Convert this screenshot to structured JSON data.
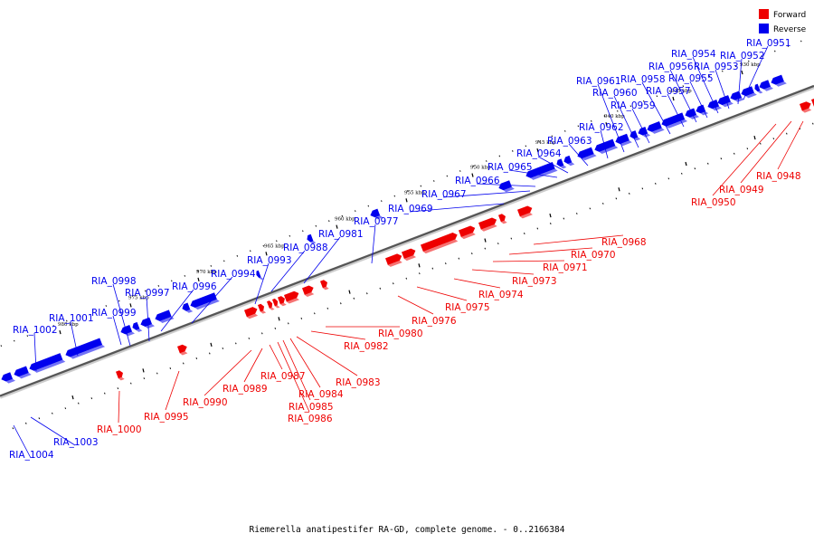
{
  "colors": {
    "forward": "#ee0000",
    "reverse": "#0000ee",
    "axis": "#777777",
    "tick": "#000000"
  },
  "legend": [
    {
      "label": "Forward",
      "strand": "forward"
    },
    {
      "label": "Reverse",
      "strand": "reverse"
    }
  ],
  "caption": "Riemerella anatipestifer RA-GD, complete genome. - 0..2166384",
  "axis_ticks": [
    "930 kbp",
    "935 kbp",
    "940 kbp",
    "945 kbp",
    "950 kbp",
    "955 kbp",
    "960 kbp",
    "965 kbp",
    "970 kbp",
    "975 kbp",
    "980 kbp"
  ],
  "genes": [
    {
      "id": "RIA_0948",
      "strand": "forward"
    },
    {
      "id": "RIA_0949",
      "strand": "forward"
    },
    {
      "id": "RIA_0950",
      "strand": "forward"
    },
    {
      "id": "RIA_0951",
      "strand": "reverse"
    },
    {
      "id": "RIA_0952",
      "strand": "reverse"
    },
    {
      "id": "RIA_0953",
      "strand": "reverse"
    },
    {
      "id": "RIA_0954",
      "strand": "reverse"
    },
    {
      "id": "RIA_0955",
      "strand": "reverse"
    },
    {
      "id": "RIA_0956",
      "strand": "reverse"
    },
    {
      "id": "RIA_0957",
      "strand": "reverse"
    },
    {
      "id": "RIA_0958",
      "strand": "reverse"
    },
    {
      "id": "RIA_0959",
      "strand": "reverse"
    },
    {
      "id": "RIA_0960",
      "strand": "reverse"
    },
    {
      "id": "RIA_0961",
      "strand": "reverse"
    },
    {
      "id": "RIA_0962",
      "strand": "reverse"
    },
    {
      "id": "RIA_0963",
      "strand": "reverse"
    },
    {
      "id": "RIA_0964",
      "strand": "reverse"
    },
    {
      "id": "RIA_0965",
      "strand": "reverse"
    },
    {
      "id": "RIA_0966",
      "strand": "reverse"
    },
    {
      "id": "RIA_0967",
      "strand": "reverse"
    },
    {
      "id": "RIA_0968",
      "strand": "forward"
    },
    {
      "id": "RIA_0969",
      "strand": "reverse"
    },
    {
      "id": "RIA_0970",
      "strand": "forward"
    },
    {
      "id": "RIA_0971",
      "strand": "forward"
    },
    {
      "id": "RIA_0973",
      "strand": "forward"
    },
    {
      "id": "RIA_0974",
      "strand": "forward"
    },
    {
      "id": "RIA_0975",
      "strand": "forward"
    },
    {
      "id": "RIA_0976",
      "strand": "forward"
    },
    {
      "id": "RIA_0977",
      "strand": "reverse"
    },
    {
      "id": "RIA_0980",
      "strand": "forward"
    },
    {
      "id": "RIA_0981",
      "strand": "reverse"
    },
    {
      "id": "RIA_0982",
      "strand": "forward"
    },
    {
      "id": "RIA_0983",
      "strand": "forward"
    },
    {
      "id": "RIA_0984",
      "strand": "forward"
    },
    {
      "id": "RIA_0985",
      "strand": "forward"
    },
    {
      "id": "RIA_0986",
      "strand": "forward"
    },
    {
      "id": "RIA_0987",
      "strand": "forward"
    },
    {
      "id": "RIA_0988",
      "strand": "reverse"
    },
    {
      "id": "RIA_0989",
      "strand": "forward"
    },
    {
      "id": "RIA_0990",
      "strand": "forward"
    },
    {
      "id": "RIA_0993",
      "strand": "reverse"
    },
    {
      "id": "RIA_0994",
      "strand": "reverse"
    },
    {
      "id": "RIA_0995",
      "strand": "forward"
    },
    {
      "id": "RIA_0996",
      "strand": "reverse"
    },
    {
      "id": "RIA_0997",
      "strand": "reverse"
    },
    {
      "id": "RIA_0998",
      "strand": "reverse"
    },
    {
      "id": "RIA_0999",
      "strand": "reverse"
    },
    {
      "id": "RIA_1000",
      "strand": "forward"
    },
    {
      "id": "RIA_1001",
      "strand": "reverse"
    },
    {
      "id": "RIA_1002",
      "strand": "reverse"
    },
    {
      "id": "RIA_1003",
      "strand": "reverse"
    },
    {
      "id": "RIA_1004",
      "strand": "reverse"
    }
  ]
}
